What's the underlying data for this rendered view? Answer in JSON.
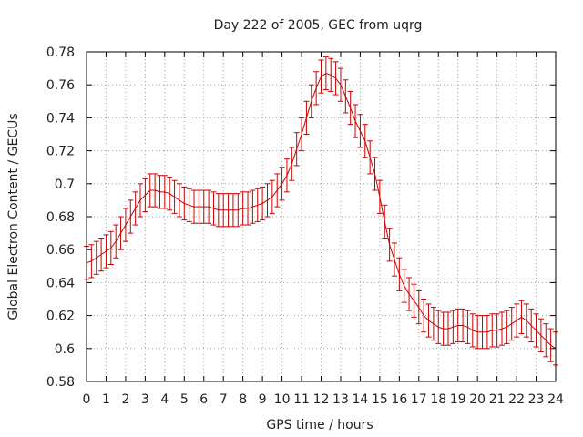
{
  "chart_data": {
    "type": "line",
    "title": "Day 222 of 2005, GEC from uqrg",
    "xlabel": "GPS time / hours",
    "ylabel": "Global Electron Content / GECUs",
    "xlim": [
      0,
      24
    ],
    "ylim": [
      0.58,
      0.78
    ],
    "xticks": [
      0,
      1,
      2,
      3,
      4,
      5,
      6,
      7,
      8,
      9,
      10,
      11,
      12,
      13,
      14,
      15,
      16,
      17,
      18,
      19,
      20,
      21,
      22,
      23,
      24
    ],
    "yticks": [
      0.58,
      0.6,
      0.62,
      0.64,
      0.66,
      0.68,
      0.7,
      0.72,
      0.74,
      0.76,
      0.78
    ],
    "ytick_labels": [
      "0.58",
      "0.6",
      "0.62",
      "0.64",
      "0.66",
      "0.68",
      "0.7",
      "0.72",
      "0.74",
      "0.76",
      "0.78"
    ],
    "grid": true,
    "line_color": "#cc0000",
    "error_bar": 0.01,
    "series": [
      {
        "name": "GEC",
        "x": [
          0,
          0.25,
          0.5,
          0.75,
          1,
          1.25,
          1.5,
          1.75,
          2,
          2.25,
          2.5,
          2.75,
          3,
          3.25,
          3.5,
          3.75,
          4,
          4.25,
          4.5,
          4.75,
          5,
          5.25,
          5.5,
          5.75,
          6,
          6.25,
          6.5,
          6.75,
          7,
          7.25,
          7.5,
          7.75,
          8,
          8.25,
          8.5,
          8.75,
          9,
          9.25,
          9.5,
          9.75,
          10,
          10.25,
          10.5,
          10.75,
          11,
          11.25,
          11.5,
          11.75,
          12,
          12.25,
          12.5,
          12.75,
          13,
          13.25,
          13.5,
          13.75,
          14,
          14.25,
          14.5,
          14.75,
          15,
          15.25,
          15.5,
          15.75,
          16,
          16.25,
          16.5,
          16.75,
          17,
          17.25,
          17.5,
          17.75,
          18,
          18.25,
          18.5,
          18.75,
          19,
          19.25,
          19.5,
          19.75,
          20,
          20.25,
          20.5,
          20.75,
          21,
          21.25,
          21.5,
          21.75,
          22,
          22.25,
          22.5,
          22.75,
          23,
          23.25,
          23.5,
          23.75,
          24
        ],
        "values": [
          0.652,
          0.653,
          0.655,
          0.657,
          0.659,
          0.661,
          0.665,
          0.67,
          0.675,
          0.68,
          0.685,
          0.69,
          0.693,
          0.696,
          0.696,
          0.695,
          0.695,
          0.694,
          0.692,
          0.69,
          0.688,
          0.687,
          0.686,
          0.686,
          0.686,
          0.686,
          0.685,
          0.684,
          0.684,
          0.684,
          0.684,
          0.684,
          0.685,
          0.685,
          0.686,
          0.687,
          0.688,
          0.69,
          0.692,
          0.696,
          0.7,
          0.705,
          0.712,
          0.721,
          0.73,
          0.74,
          0.75,
          0.758,
          0.765,
          0.767,
          0.766,
          0.764,
          0.76,
          0.753,
          0.746,
          0.738,
          0.732,
          0.726,
          0.716,
          0.706,
          0.692,
          0.677,
          0.663,
          0.654,
          0.645,
          0.638,
          0.633,
          0.629,
          0.625,
          0.62,
          0.617,
          0.615,
          0.613,
          0.612,
          0.612,
          0.613,
          0.614,
          0.614,
          0.613,
          0.611,
          0.61,
          0.61,
          0.61,
          0.611,
          0.611,
          0.612,
          0.613,
          0.615,
          0.617,
          0.619,
          0.617,
          0.614,
          0.611,
          0.608,
          0.605,
          0.602,
          0.6
        ]
      }
    ]
  }
}
